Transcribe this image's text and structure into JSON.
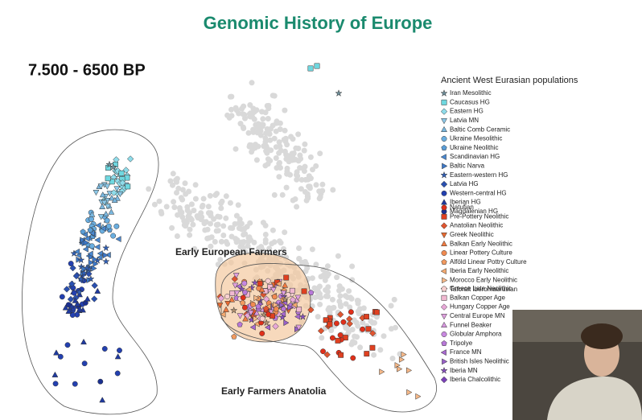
{
  "title": "Genomic History of Europe",
  "period": "7.500 - 6500 BP",
  "annotations": [
    "Early European Farmers",
    "Early Farmers Anatolia"
  ],
  "legend": {
    "title": "Ancient West Eurasian populations",
    "groups": [
      [
        {
          "label": "Iran Mesolithic",
          "marker": "star",
          "color": "#6f8f9a"
        },
        {
          "label": "Caucasus HG",
          "marker": "square",
          "color": "#6fd8e0"
        },
        {
          "label": "Eastern HG",
          "marker": "diamond",
          "color": "#8fdcea"
        },
        {
          "label": "Latvia MN",
          "marker": "triangle-down",
          "color": "#8cc8e8"
        },
        {
          "label": "Baltic Comb Ceramic",
          "marker": "triangle",
          "color": "#7ab8e0"
        },
        {
          "label": "Ukraine Mesolithic",
          "marker": "circle",
          "color": "#6aaee0"
        },
        {
          "label": "Ukraine Neolithic",
          "marker": "pentagon",
          "color": "#5a9ed8"
        },
        {
          "label": "Scandinavian HG",
          "marker": "triangle-left",
          "color": "#4a88d0"
        },
        {
          "label": "Baltic Narva",
          "marker": "triangle-right",
          "color": "#3d78c8"
        },
        {
          "label": "Eastern-western HG",
          "marker": "star",
          "color": "#2f5fb8"
        },
        {
          "label": "Latvia HG",
          "marker": "diamond",
          "color": "#2a50b0"
        },
        {
          "label": "Western-central HG",
          "marker": "circle",
          "color": "#2340b0"
        },
        {
          "label": "Iberian HG",
          "marker": "triangle",
          "color": "#1f3aa0"
        },
        {
          "label": "Magdalenian HG",
          "marker": "circle",
          "color": "#1a2f90"
        }
      ],
      [
        {
          "label": "Natufian",
          "marker": "circle",
          "color": "#e0301a"
        },
        {
          "label": "Pre-Pottery Neolithic",
          "marker": "square",
          "color": "#e04020"
        },
        {
          "label": "Anatolian Neolithic",
          "marker": "diamond",
          "color": "#e05530"
        },
        {
          "label": "Greek Neolithic",
          "marker": "triangle-down",
          "color": "#e86a30"
        },
        {
          "label": "Balkan Early Neolithic",
          "marker": "triangle",
          "color": "#f07a40"
        },
        {
          "label": "Linear Pottery Culture",
          "marker": "circle",
          "color": "#f08a50"
        },
        {
          "label": "Alföld Linear Pottry Culture",
          "marker": "pentagon",
          "color": "#f29a60"
        },
        {
          "label": "Iberia Early Neolithic",
          "marker": "triangle-left",
          "color": "#f5aa70"
        },
        {
          "label": "Morocco Early Neolithic",
          "marker": "triangle-right",
          "color": "#f5b888"
        },
        {
          "label": "Taforalt Iberomaurusian",
          "marker": "star",
          "color": "#b09070"
        }
      ],
      [
        {
          "label": "Greece Late Neolithic",
          "marker": "circle",
          "color": "#f8d0d0"
        },
        {
          "label": "Balkan Copper Age",
          "marker": "square",
          "color": "#f0b8d0"
        },
        {
          "label": "Hungary Copper Age",
          "marker": "diamond",
          "color": "#e8a8d8"
        },
        {
          "label": "Central Europe MN",
          "marker": "triangle-down",
          "color": "#e0a0e0"
        },
        {
          "label": "Funnel Beaker",
          "marker": "triangle",
          "color": "#d898e0"
        },
        {
          "label": "Globular Amphora",
          "marker": "circle",
          "color": "#c888e0"
        },
        {
          "label": "Tripolye",
          "marker": "pentagon",
          "color": "#b878d8"
        },
        {
          "label": "France MN",
          "marker": "triangle-left",
          "color": "#a868d0"
        },
        {
          "label": "British Isles Neolithic",
          "marker": "triangle-right",
          "color": "#9860c8"
        },
        {
          "label": "Iberia MN",
          "marker": "star",
          "color": "#8850c0"
        },
        {
          "label": "Iberia Chalcolithic",
          "marker": "diamond",
          "color": "#7a40b8"
        }
      ]
    ]
  }
}
